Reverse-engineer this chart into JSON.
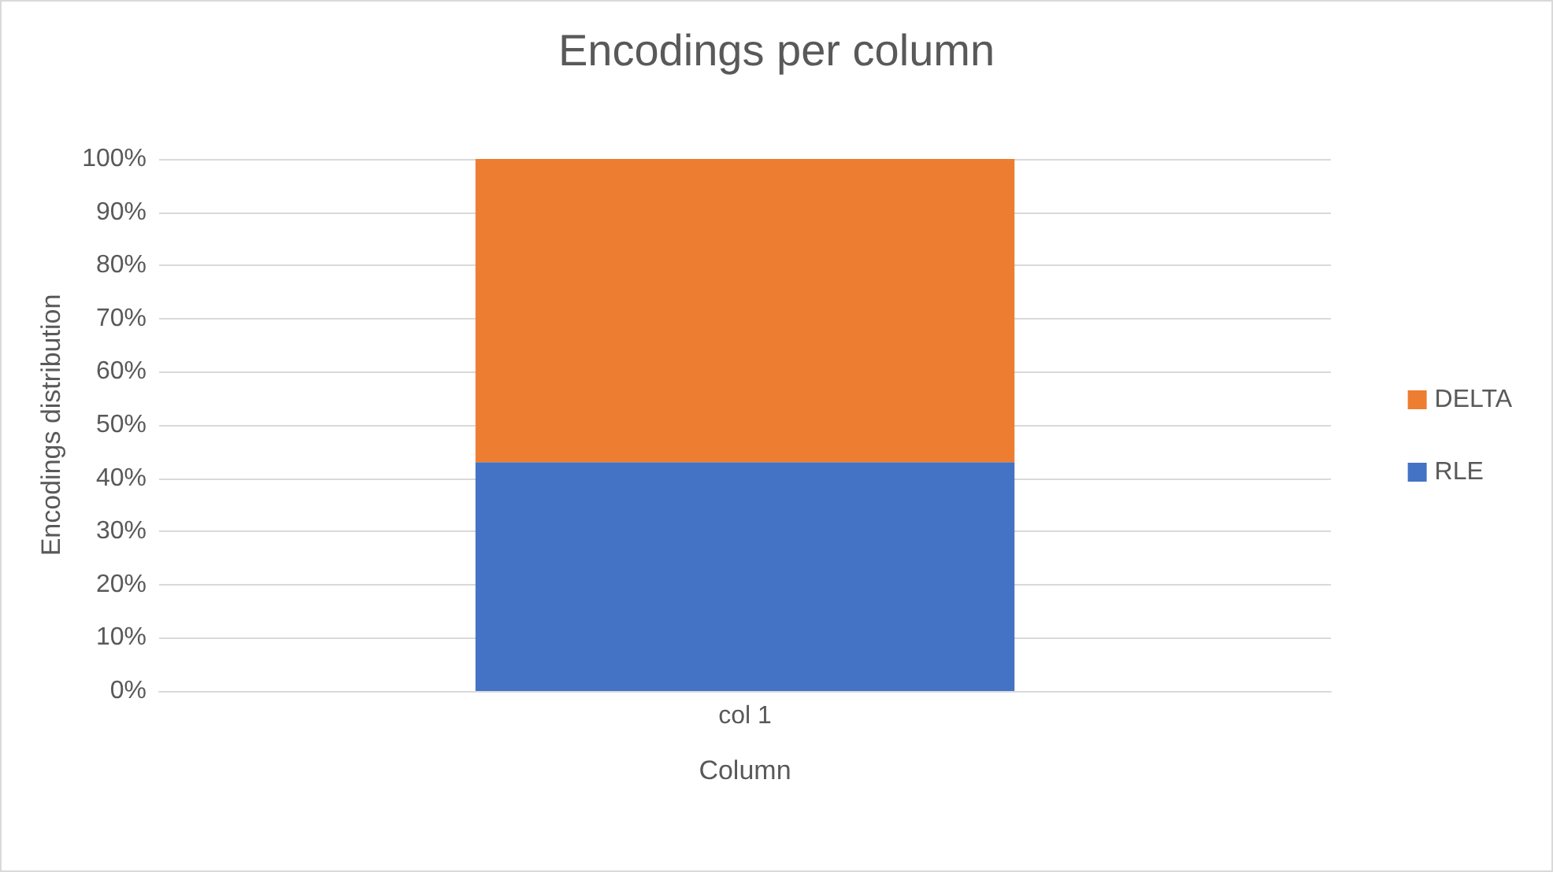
{
  "chart_data": {
    "type": "bar",
    "title": "Encodings per column",
    "xlabel": "Column",
    "ylabel": "Encodings distribution",
    "categories": [
      "col 1"
    ],
    "stacked": true,
    "series": [
      {
        "name": "RLE",
        "color": "#4472c4",
        "values": [
          43
        ]
      },
      {
        "name": "DELTA",
        "color": "#ed7d31",
        "values": [
          57
        ]
      }
    ],
    "ylim": [
      0,
      100
    ],
    "yticks": [
      {
        "value": 0,
        "label": "0%"
      },
      {
        "value": 10,
        "label": "10%"
      },
      {
        "value": 20,
        "label": "20%"
      },
      {
        "value": 30,
        "label": "30%"
      },
      {
        "value": 40,
        "label": "40%"
      },
      {
        "value": 50,
        "label": "50%"
      },
      {
        "value": 60,
        "label": "60%"
      },
      {
        "value": 70,
        "label": "70%"
      },
      {
        "value": 80,
        "label": "80%"
      },
      {
        "value": 90,
        "label": "90%"
      },
      {
        "value": 100,
        "label": "100%"
      }
    ],
    "grid": "y",
    "legend": "right"
  }
}
